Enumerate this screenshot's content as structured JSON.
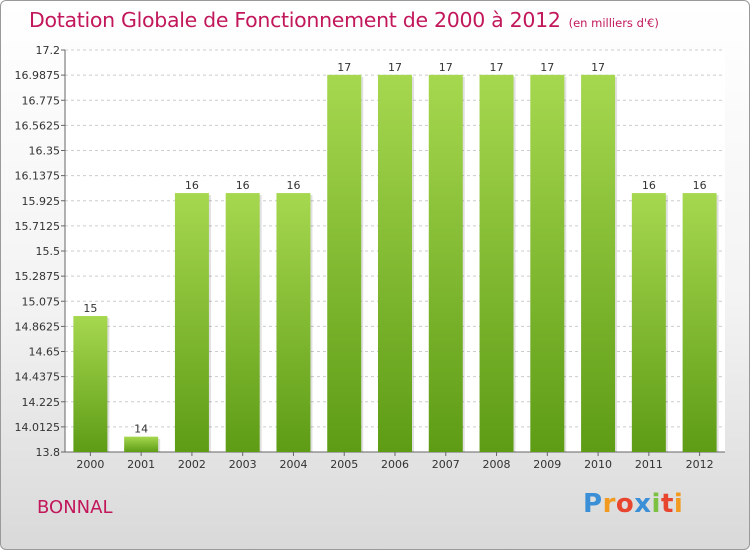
{
  "title": "Dotation Globale de Fonctionnement de 2000 à 2012",
  "unit": "(en milliers d'€)",
  "commune": "BONNAL",
  "logo": {
    "text": "Proxiti",
    "colors": [
      "#3b8fd6",
      "#f29a1f",
      "#e8452f",
      "#3b8fd6",
      "#7cc142",
      "#e8452f",
      "#f29a1f"
    ]
  },
  "colors": {
    "bar_top": "#a6d84f",
    "bar_bottom": "#5e9c16",
    "title": "#c2185b",
    "grid": "#cccccc",
    "text": "#333333"
  },
  "chart_data": {
    "type": "bar",
    "categories": [
      "2000",
      "2001",
      "2002",
      "2003",
      "2004",
      "2005",
      "2006",
      "2007",
      "2008",
      "2009",
      "2010",
      "2011",
      "2012"
    ],
    "values": [
      15,
      14,
      16,
      16,
      16,
      17,
      17,
      17,
      17,
      17,
      17,
      16,
      16
    ],
    "data_labels": [
      "15",
      "14",
      "16",
      "16",
      "16",
      "17",
      "17",
      "17",
      "17",
      "17",
      "17",
      "16",
      "16"
    ],
    "plotted_values": [
      14.95,
      13.93,
      15.99,
      15.99,
      15.99,
      16.99,
      16.99,
      16.99,
      16.99,
      16.99,
      16.99,
      15.99,
      15.99
    ],
    "ylim": [
      13.8,
      17.2
    ],
    "yticks": [
      "13.8",
      "14.0125",
      "14.225",
      "14.4375",
      "14.65",
      "14.8625",
      "15.075",
      "15.2875",
      "15.5",
      "15.7125",
      "15.925",
      "16.1375",
      "16.35",
      "16.5625",
      "16.775",
      "16.9875",
      "17.2"
    ],
    "grid": true,
    "title": "Dotation Globale de Fonctionnement de 2000 à 2012",
    "xlabel": "",
    "ylabel": ""
  }
}
